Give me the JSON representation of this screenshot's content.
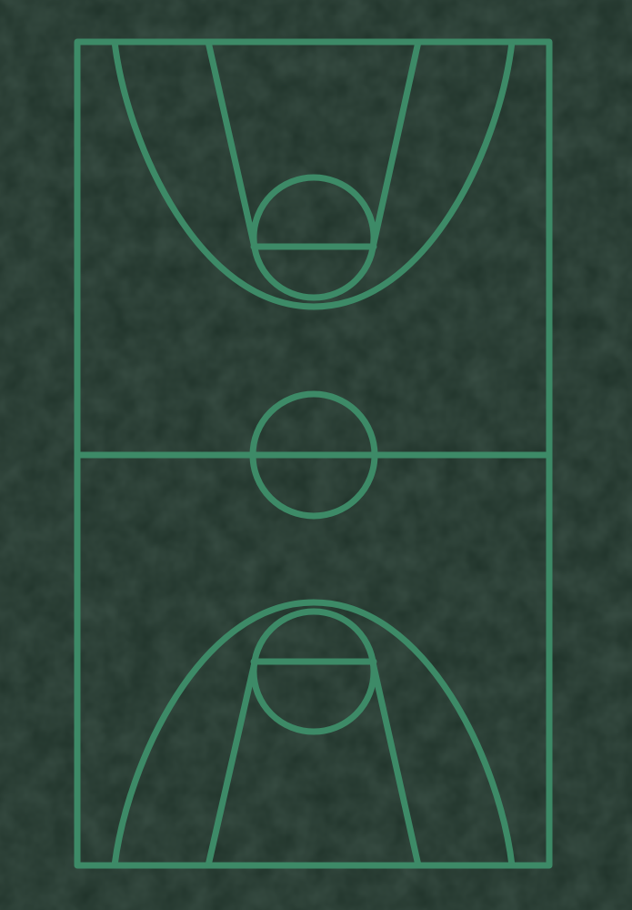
{
  "colors": {
    "background": "#1f3229",
    "background_mottle": "#23372d",
    "line": "#3d8a67"
  },
  "court": {
    "orientation": "vertical",
    "markings": [
      "court-boundary",
      "half-court-line",
      "center-circle",
      "three-point-arc-top",
      "lane-top",
      "free-throw-circle-top",
      "free-throw-line-top",
      "three-point-arc-bottom",
      "lane-bottom",
      "free-throw-circle-bottom",
      "free-throw-line-bottom"
    ]
  }
}
